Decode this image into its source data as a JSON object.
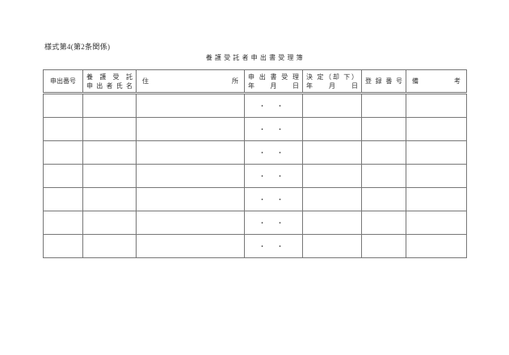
{
  "page": {
    "form_label": "様式第4(第2条関係)",
    "title": "養 護 受 託 者 申 出 書 受 理 簿"
  },
  "table": {
    "headers": [
      {
        "line1": "申出番号",
        "line2": ""
      },
      {
        "line1": "養 護 受 託",
        "line2": "申 出 者 氏 名"
      },
      {
        "line1": "住 所",
        "line2": ""
      },
      {
        "line1": "申 出 書 受 理",
        "line2": "年 月 日"
      },
      {
        "line1": "決 定（却 下）",
        "line2": "年 月 日"
      },
      {
        "line1": "登 録 番 号",
        "line2": ""
      },
      {
        "line1": "備 考",
        "line2": ""
      }
    ],
    "rows": [
      {
        "application_number": "",
        "applicant_name": "",
        "address": "",
        "receipt_date": "・ ・",
        "decision_date": "",
        "registration_number": "",
        "remarks": ""
      },
      {
        "application_number": "",
        "applicant_name": "",
        "address": "",
        "receipt_date": "・ ・",
        "decision_date": "",
        "registration_number": "",
        "remarks": ""
      },
      {
        "application_number": "",
        "applicant_name": "",
        "address": "",
        "receipt_date": "・ ・",
        "decision_date": "",
        "registration_number": "",
        "remarks": ""
      },
      {
        "application_number": "",
        "applicant_name": "",
        "address": "",
        "receipt_date": "・ ・",
        "decision_date": "",
        "registration_number": "",
        "remarks": ""
      },
      {
        "application_number": "",
        "applicant_name": "",
        "address": "",
        "receipt_date": "・ ・",
        "decision_date": "",
        "registration_number": "",
        "remarks": ""
      },
      {
        "application_number": "",
        "applicant_name": "",
        "address": "",
        "receipt_date": "・ ・",
        "decision_date": "",
        "registration_number": "",
        "remarks": ""
      },
      {
        "application_number": "",
        "applicant_name": "",
        "address": "",
        "receipt_date": "・ ・",
        "decision_date": "",
        "registration_number": "",
        "remarks": ""
      }
    ]
  }
}
